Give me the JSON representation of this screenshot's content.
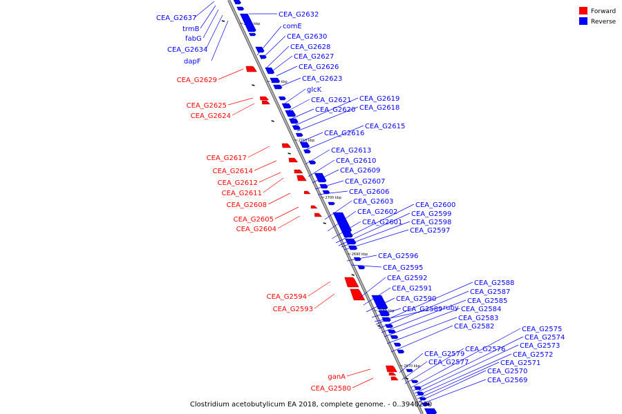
{
  "caption": "Clostridium acetobutylicum EA 2018, complete genome. - 0..3940230",
  "legend": [
    {
      "label": "Forward",
      "color": "#ff0000"
    },
    {
      "label": "Reverse",
      "color": "#0000ff"
    }
  ],
  "colors": {
    "forward": "#ff0000",
    "reverse": "#0000ff",
    "axis": "#999999"
  },
  "ticks": [
    "2730 kbp",
    "2720 kbp",
    "2710 kbp",
    "2700 kbp",
    "2690 kbp",
    "2680 kbp",
    "2670 kbp"
  ],
  "genes_reverse": [
    "CEA_G2637",
    "trmB",
    "fabG",
    "CEA_G2634",
    "dapF",
    "CEA_G2632",
    "comE",
    "CEA_G2630",
    "CEA_G2628",
    "CEA_G2627",
    "CEA_G2626",
    "CEA_G2623",
    "glcK",
    "CEA_G2621",
    "CEA_G2620",
    "CEA_G2619",
    "CEA_G2618",
    "CEA_G2616",
    "CEA_G2615",
    "CEA_G2613",
    "CEA_G2610",
    "CEA_G2609",
    "CEA_G2607",
    "CEA_G2606",
    "CEA_G2603",
    "CEA_G2602",
    "CEA_G2601",
    "CEA_G2600",
    "CEA_G2599",
    "CEA_G2598",
    "CEA_G2597",
    "CEA_G2596",
    "CEA_G2595",
    "CEA_G2592",
    "CEA_G2591",
    "CEA_G2590",
    "CEA_G2589",
    "ruby",
    "CEA_G2588",
    "CEA_G2587",
    "CEA_G2585",
    "CEA_G2584",
    "CEA_G2583",
    "CEA_G2582",
    "CEA_G2579",
    "CEA_G2577",
    "CEA_G2576",
    "CEA_G2575",
    "CEA_G2574",
    "CEA_G2573",
    "CEA_G2572",
    "CEA_G2571",
    "CEA_G2570",
    "CEA_G2569"
  ],
  "genes_forward": [
    "CEA_G2629",
    "CEA_G2625",
    "CEA_G2624",
    "CEA_G2617",
    "CEA_G2614",
    "CEA_G2612",
    "CEA_G2611",
    "CEA_G2608",
    "CEA_G2605",
    "CEA_G2604",
    "CEA_G2594",
    "CEA_G2593",
    "ganA",
    "CEA_G2580"
  ]
}
